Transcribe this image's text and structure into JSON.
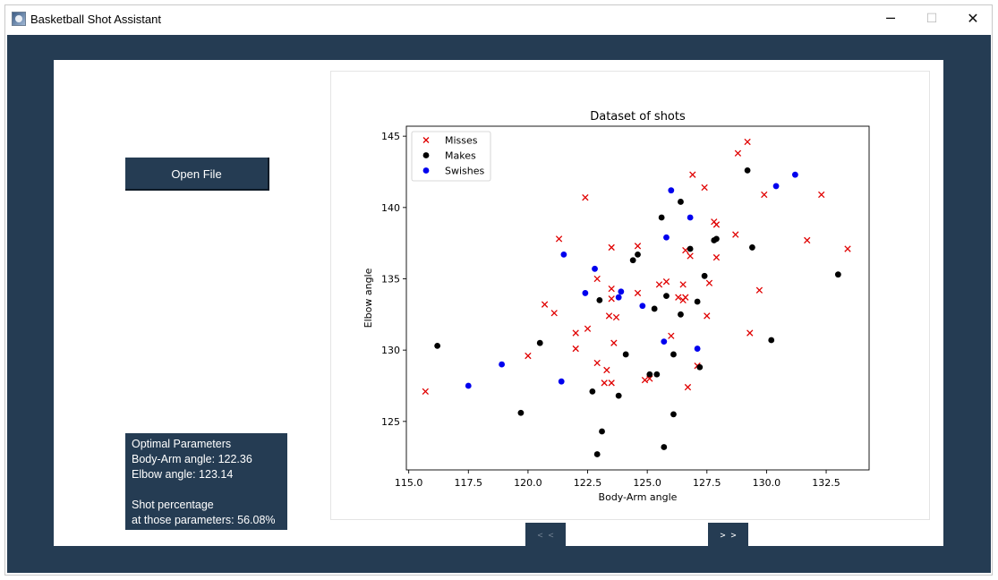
{
  "window": {
    "title": "Basketball Shot Assistant",
    "minimize_glyph": "─",
    "maximize_glyph": "☐",
    "close_glyph": "✕"
  },
  "controls": {
    "open_file_label": "Open File",
    "prev_label": "< <",
    "next_label": "> >"
  },
  "info": {
    "line1": "Optimal Parameters",
    "line2": "Body-Arm angle: 122.36",
    "line3": "Elbow angle: 123.14",
    "line4": "",
    "line5": "Shot percentage",
    "line6": "at those parameters: 56.08%"
  },
  "colors": {
    "app_background": "#253c53",
    "misses": "#e00000",
    "makes": "#000000",
    "swishes": "#0000ee"
  },
  "chart_data": {
    "type": "scatter",
    "title": "Dataset of shots",
    "xlabel": "Body-Arm angle",
    "ylabel": "Elbow angle",
    "xlim": [
      114.9,
      134.3
    ],
    "ylim": [
      121.6,
      145.7
    ],
    "xticks": [
      "115.0",
      "117.5",
      "120.0",
      "122.5",
      "125.0",
      "127.5",
      "130.0",
      "132.5"
    ],
    "yticks": [
      "125",
      "130",
      "135",
      "140",
      "145"
    ],
    "grid": false,
    "legend_position": "top-left",
    "series": [
      {
        "name": "Misses",
        "marker": "x",
        "points": [
          [
            115.7,
            127.1
          ],
          [
            120.0,
            129.6
          ],
          [
            120.7,
            133.2
          ],
          [
            121.1,
            132.6
          ],
          [
            121.3,
            137.8
          ],
          [
            122.0,
            131.2
          ],
          [
            122.0,
            130.1
          ],
          [
            122.4,
            140.7
          ],
          [
            122.5,
            131.5
          ],
          [
            122.9,
            135.0
          ],
          [
            122.9,
            129.1
          ],
          [
            123.2,
            127.7
          ],
          [
            123.3,
            128.6
          ],
          [
            123.4,
            132.4
          ],
          [
            123.5,
            127.7
          ],
          [
            123.5,
            137.2
          ],
          [
            123.5,
            133.6
          ],
          [
            123.5,
            134.3
          ],
          [
            123.6,
            130.5
          ],
          [
            123.7,
            132.3
          ],
          [
            124.6,
            137.3
          ],
          [
            124.6,
            134.0
          ],
          [
            124.9,
            127.9
          ],
          [
            125.1,
            128.0
          ],
          [
            125.5,
            134.6
          ],
          [
            125.8,
            134.8
          ],
          [
            126.0,
            131.0
          ],
          [
            126.3,
            133.7
          ],
          [
            126.5,
            134.6
          ],
          [
            126.5,
            133.5
          ],
          [
            126.6,
            133.7
          ],
          [
            126.6,
            137.0
          ],
          [
            126.7,
            127.4
          ],
          [
            126.8,
            136.6
          ],
          [
            126.9,
            142.3
          ],
          [
            127.1,
            128.9
          ],
          [
            127.4,
            141.4
          ],
          [
            127.5,
            132.4
          ],
          [
            127.6,
            134.7
          ],
          [
            127.8,
            139.0
          ],
          [
            127.9,
            138.8
          ],
          [
            127.9,
            136.5
          ],
          [
            128.7,
            138.1
          ],
          [
            128.8,
            143.8
          ],
          [
            129.2,
            144.6
          ],
          [
            129.3,
            131.2
          ],
          [
            129.7,
            134.2
          ],
          [
            129.9,
            140.9
          ],
          [
            131.7,
            137.7
          ],
          [
            132.3,
            140.9
          ],
          [
            133.4,
            137.1
          ]
        ]
      },
      {
        "name": "Makes",
        "marker": "o",
        "points": [
          [
            116.2,
            130.3
          ],
          [
            119.7,
            125.6
          ],
          [
            120.5,
            130.5
          ],
          [
            122.7,
            127.1
          ],
          [
            122.9,
            122.7
          ],
          [
            123.0,
            133.5
          ],
          [
            123.1,
            124.3
          ],
          [
            123.8,
            126.8
          ],
          [
            124.1,
            129.7
          ],
          [
            124.4,
            136.3
          ],
          [
            124.6,
            136.7
          ],
          [
            125.1,
            128.3
          ],
          [
            125.3,
            132.9
          ],
          [
            125.4,
            128.3
          ],
          [
            125.6,
            139.3
          ],
          [
            125.7,
            123.2
          ],
          [
            125.8,
            133.8
          ],
          [
            126.1,
            125.5
          ],
          [
            126.1,
            129.7
          ],
          [
            126.4,
            132.5
          ],
          [
            126.4,
            140.4
          ],
          [
            126.8,
            137.1
          ],
          [
            127.1,
            133.4
          ],
          [
            127.2,
            128.8
          ],
          [
            127.4,
            135.2
          ],
          [
            127.8,
            137.7
          ],
          [
            127.9,
            137.8
          ],
          [
            129.2,
            142.6
          ],
          [
            129.4,
            137.2
          ],
          [
            130.2,
            130.7
          ],
          [
            133.0,
            135.3
          ]
        ]
      },
      {
        "name": "Swishes",
        "marker": "o",
        "points": [
          [
            117.5,
            127.5
          ],
          [
            118.9,
            129.0
          ],
          [
            121.4,
            127.8
          ],
          [
            121.5,
            136.7
          ],
          [
            122.4,
            134.0
          ],
          [
            122.8,
            135.7
          ],
          [
            123.8,
            133.7
          ],
          [
            123.9,
            134.1
          ],
          [
            124.8,
            133.1
          ],
          [
            125.7,
            130.6
          ],
          [
            125.8,
            137.9
          ],
          [
            126.0,
            141.2
          ],
          [
            126.8,
            139.3
          ],
          [
            127.1,
            130.1
          ],
          [
            130.4,
            141.5
          ],
          [
            131.2,
            142.3
          ]
        ]
      }
    ]
  }
}
